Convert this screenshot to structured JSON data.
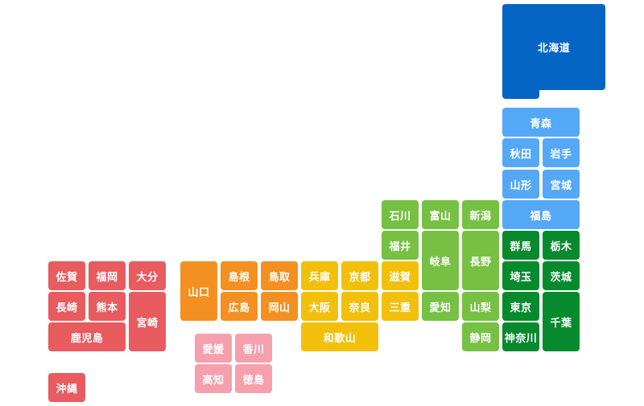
{
  "regions": {
    "hokkaido": {
      "color": "#0465c4"
    },
    "tohoku": {
      "color": "#55a8f5"
    },
    "kanto": {
      "color": "#078a2e"
    },
    "chubu": {
      "color": "#76c043"
    },
    "kinki": {
      "color": "#f2c00a"
    },
    "chugoku": {
      "color": "#f39021"
    },
    "shikoku": {
      "color": "#f5a0ac"
    },
    "kyushu": {
      "color": "#e85b5f"
    }
  },
  "prefectures": {
    "hokkaido": "北海道",
    "aomori": "青森",
    "akita": "秋田",
    "iwate": "岩手",
    "yamagata": "山形",
    "miyagi": "宮城",
    "fukushima": "福島",
    "gunma": "群馬",
    "tochigi": "栃木",
    "saitama": "埼玉",
    "ibaraki": "茨城",
    "tokyo": "東京",
    "kanagawa": "神奈川",
    "chiba": "千葉",
    "ishikawa": "石川",
    "toyama": "富山",
    "niigata": "新潟",
    "fukui": "福井",
    "gifu": "岐阜",
    "nagano": "長野",
    "aichi": "愛知",
    "yamanashi": "山梨",
    "shizuoka": "静岡",
    "shiga": "滋賀",
    "kyoto": "京都",
    "hyogo": "兵庫",
    "osaka": "大阪",
    "nara": "奈良",
    "mie": "三重",
    "wakayama": "和歌山",
    "yamaguchi": "山口",
    "shimane": "島根",
    "tottori": "鳥取",
    "hiroshima": "広島",
    "okayama": "岡山",
    "ehime": "愛媛",
    "kagawa": "香川",
    "kochi": "高知",
    "tokushima": "徳島",
    "saga": "佐賀",
    "fukuoka": "福岡",
    "oita": "大分",
    "nagasaki": "長崎",
    "kumamoto": "熊本",
    "miyazaki": "宮崎",
    "kagoshima": "鹿児島",
    "okinawa": "沖縄"
  }
}
